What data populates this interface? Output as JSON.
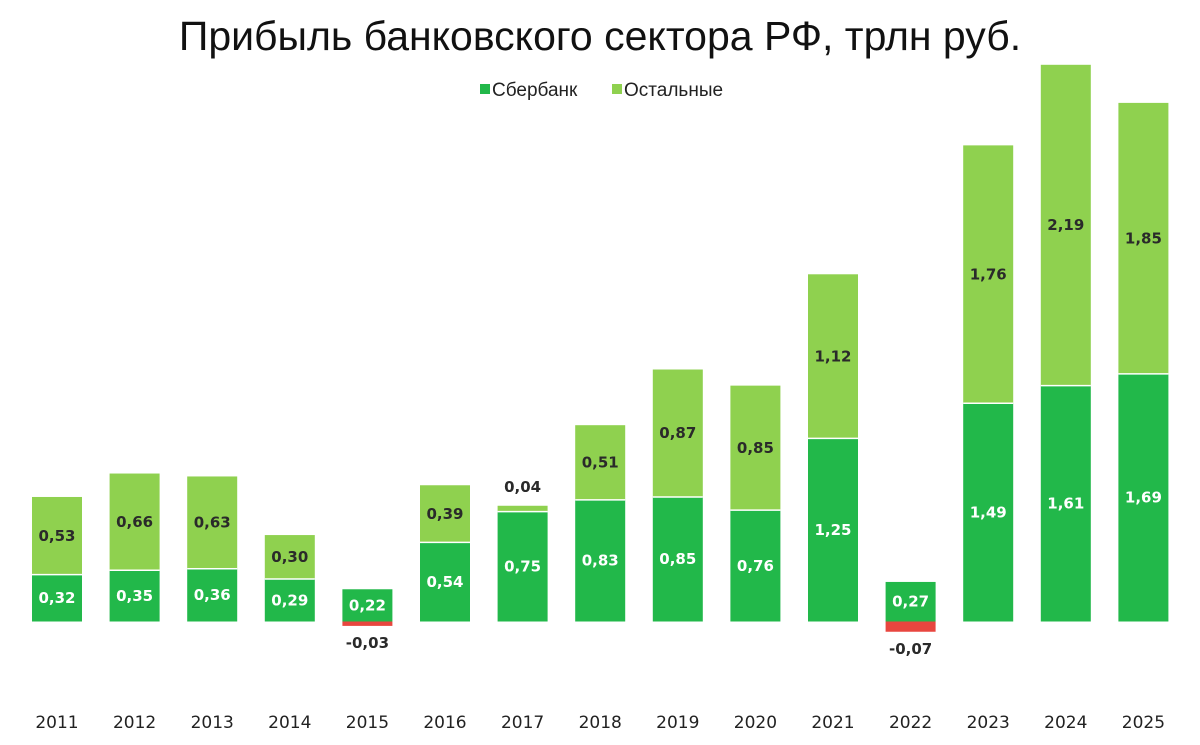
{
  "chart_data": {
    "type": "bar",
    "stacked": true,
    "title": "Прибыль банковского сектора РФ, трлн руб.",
    "xlabel": "",
    "ylabel": "",
    "ylim": [
      -0.2,
      3.85
    ],
    "grid": false,
    "legend_position": "top-center",
    "categories": [
      "2011",
      "2012",
      "2013",
      "2014",
      "2015",
      "2016",
      "2017",
      "2018",
      "2019",
      "2020",
      "2021",
      "2022",
      "2023",
      "2024",
      "2025"
    ],
    "series": [
      {
        "name": "Сбербанк",
        "color": "#22b84a",
        "values": [
          0.32,
          0.35,
          0.36,
          0.29,
          0.22,
          0.54,
          0.75,
          0.83,
          0.85,
          0.76,
          1.25,
          0.27,
          1.49,
          1.61,
          1.69
        ],
        "labels": [
          "0,32",
          "0,35",
          "0,36",
          "0,29",
          "0,22",
          "0,54",
          "0,75",
          "0,83",
          "0,85",
          "0,76",
          "1,25",
          "0,27",
          "1,49",
          "1,61",
          "1,69"
        ]
      },
      {
        "name": "Остальные",
        "color": "#8fd14f",
        "negative_color": "#e8463f",
        "values": [
          0.53,
          0.66,
          0.63,
          0.3,
          -0.03,
          0.39,
          0.04,
          0.51,
          0.87,
          0.85,
          1.12,
          -0.07,
          1.76,
          2.19,
          1.85
        ],
        "labels": [
          "0,53",
          "0,66",
          "0,63",
          "0,30",
          "-0,03",
          "0,39",
          "0,04",
          "0,51",
          "0,87",
          "0,85",
          "1,12",
          "-0,07",
          "1,76",
          "2,19",
          "1,85"
        ]
      }
    ]
  }
}
